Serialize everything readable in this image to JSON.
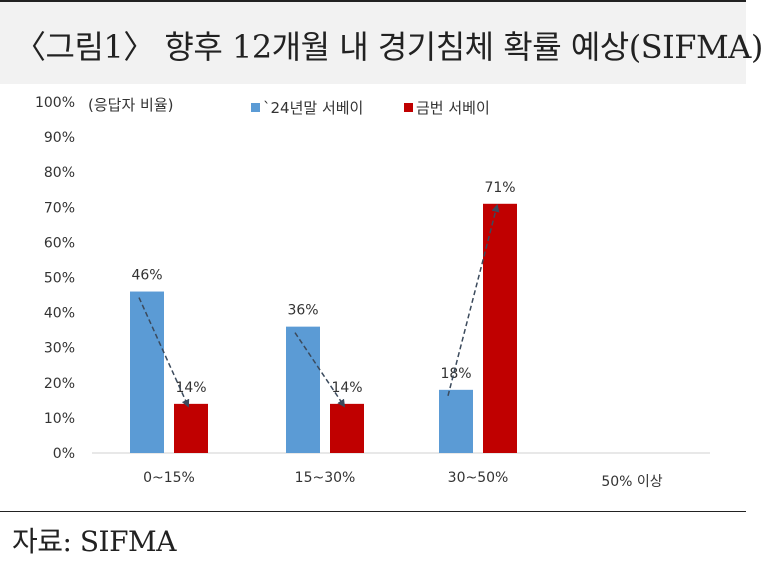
{
  "title": "〈그림1〉 향후 12개월 내 경기침체 확률 예상(SIFMA)",
  "source": "자료: SIFMA",
  "chart_data": {
    "type": "bar",
    "ylabel": "(응답자 비율)",
    "ylim": [
      0,
      100
    ],
    "yticks": [
      "0%",
      "10%",
      "20%",
      "30%",
      "40%",
      "50%",
      "60%",
      "70%",
      "80%",
      "90%",
      "100%"
    ],
    "categories": [
      "0~15%",
      "15~30%",
      "30~50%",
      "50% 이상"
    ],
    "series": [
      {
        "name": "`24년말 서베이",
        "color": "#5b9bd5",
        "values": [
          46,
          36,
          18,
          null
        ],
        "labels": [
          "46%",
          "36%",
          "18%",
          ""
        ]
      },
      {
        "name": "금번 서베이",
        "color": "#c00000",
        "values": [
          14,
          14,
          71,
          null
        ],
        "labels": [
          "14%",
          "14%",
          "71%",
          ""
        ]
      }
    ],
    "legend_position": "top",
    "grid": false,
    "annotations": "dashed arrows from previous survey to current survey for each category"
  }
}
